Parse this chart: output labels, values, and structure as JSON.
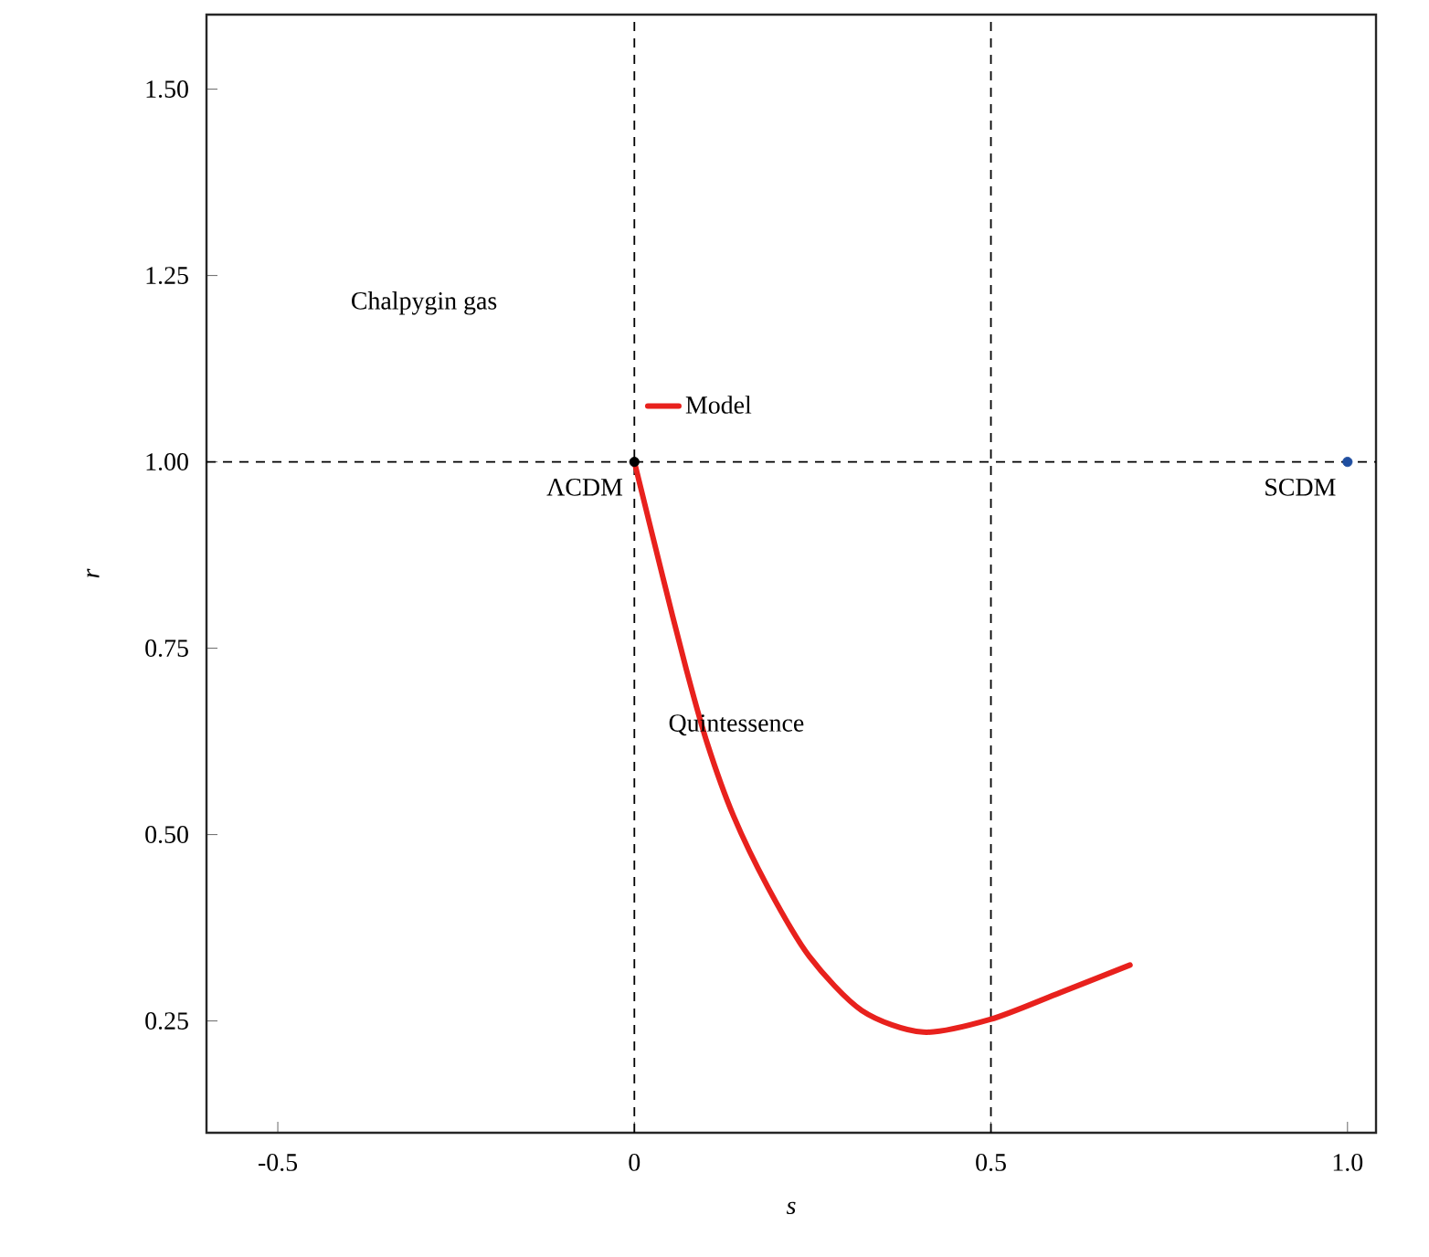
{
  "chart_data": {
    "type": "line",
    "xlabel": "s",
    "ylabel": "r",
    "xlim": [
      -0.6,
      1.04
    ],
    "ylim": [
      0.1,
      1.6
    ],
    "xticks": [
      -0.5,
      0,
      0.5,
      {
        "value": 1,
        "label": "1.0"
      }
    ],
    "yticks": [
      0.25,
      {
        "value": 0.5,
        "label": "0.50"
      },
      0.75,
      {
        "value": 1,
        "label": "1.00"
      },
      1.25,
      {
        "value": 1.5,
        "label": "1.50"
      }
    ],
    "series": [
      {
        "name": "Model",
        "color": "#e8211d",
        "x": [
          0,
          0.04,
          0.073,
          0.102,
          0.139,
          0.188,
          0.245,
          0.319,
          0.405,
          0.499,
          0.597,
          0.695
        ],
        "values": [
          1,
          0.845,
          0.721,
          0.623,
          0.525,
          0.428,
          0.337,
          0.264,
          0.235,
          0.252,
          0.288,
          0.325
        ]
      },
      {
        "type": "scatter",
        "marker": "circle",
        "color": "#000000",
        "x": [
          0
        ],
        "values": [
          1
        ]
      },
      {
        "type": "scatter",
        "marker": "circle",
        "color": "#1f4ea0",
        "x": [
          1
        ],
        "values": [
          1
        ]
      }
    ],
    "ref_lines": [
      {
        "axis": "x",
        "value": 0,
        "line_style": "dashed",
        "color": "#000000"
      },
      {
        "axis": "x",
        "value": 0.5,
        "line_style": "dashed",
        "color": "#000000"
      },
      {
        "axis": "y",
        "value": 1,
        "line_style": "dashed",
        "color": "#000000"
      }
    ],
    "annotations": [
      "Chalpygin gas",
      {
        "text": "ΛCDM",
        "x": 0,
        "y": 1
      },
      {
        "text": "SCDM",
        "x": 1,
        "y": 1
      },
      "Quintessence"
    ],
    "grid": false,
    "legend": "center"
  }
}
